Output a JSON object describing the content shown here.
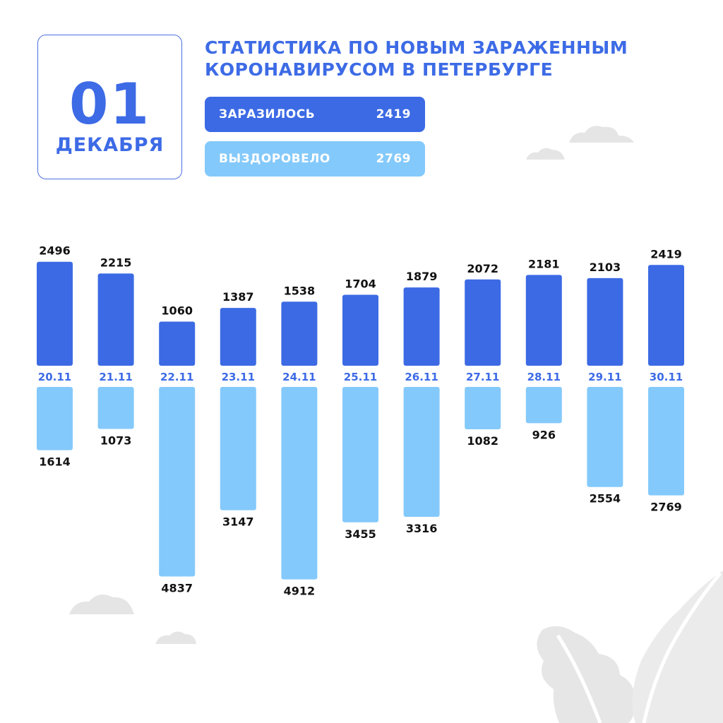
{
  "date": {
    "day": "01",
    "month": "ДЕКАБРЯ"
  },
  "title": {
    "line1": "СТАТИСТИКА ПО НОВЫМ ЗАРАЖЕННЫМ",
    "line2": "КОРОНАВИРУСОМ В ПЕТЕРБУРГЕ"
  },
  "summary": {
    "infected_label": "ЗАРАЗИЛОСЬ",
    "infected_value": "2419",
    "recovered_label": "ВЫЗДОРОВЕЛО",
    "recovered_value": "2769"
  },
  "colors": {
    "infected": "#3c6ae4",
    "recovered": "#84c9fb",
    "accent": "#3d6be6"
  },
  "chart_data": {
    "type": "bar",
    "categories": [
      "20.11",
      "21.11",
      "22.11",
      "23.11",
      "24.11",
      "25.11",
      "26.11",
      "27.11",
      "28.11",
      "29.11",
      "30.11"
    ],
    "series": [
      {
        "name": "ЗАРАЗИЛОСЬ",
        "direction": "up",
        "values": [
          2496,
          2215,
          1060,
          1387,
          1538,
          1704,
          1879,
          2072,
          2181,
          2103,
          2419
        ]
      },
      {
        "name": "ВЫЗДОРОВЕЛО",
        "direction": "down",
        "values": [
          1614,
          1073,
          4837,
          3147,
          4912,
          3455,
          3316,
          1082,
          926,
          2554,
          2769
        ]
      }
    ],
    "legend": "top",
    "grid": false
  }
}
